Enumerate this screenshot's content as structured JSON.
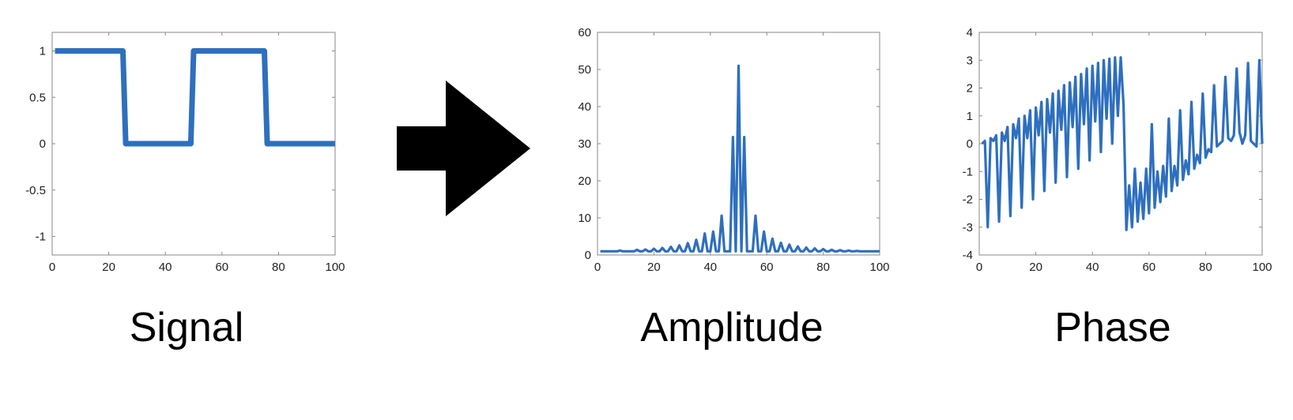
{
  "captions": {
    "signal": "Signal",
    "amplitude": "Amplitude",
    "phase": "Phase"
  },
  "colors": {
    "line": "#2E6FBF",
    "arrow": "#000000",
    "axis": "#888888",
    "text": "#222222"
  },
  "arrow": {
    "icon": "right-arrow-icon"
  },
  "chart_data": [
    {
      "type": "line",
      "xlim": [
        0,
        100
      ],
      "ylim": [
        -1.2,
        1.2
      ],
      "xticks": [
        0,
        20,
        40,
        60,
        80,
        100
      ],
      "yticks": [
        -1,
        -0.5,
        0,
        0.5,
        1
      ],
      "xticklabels": [
        "0",
        "20",
        "40",
        "60",
        "80",
        "100"
      ],
      "yticklabels": [
        "-1",
        "-0.5",
        "0",
        "0.5",
        "1"
      ],
      "grid": false,
      "series": [
        {
          "x": [
            1,
            25,
            26,
            49,
            50,
            75,
            76,
            100
          ],
          "y": [
            1,
            1,
            0,
            0,
            1,
            1,
            0,
            0
          ]
        }
      ]
    },
    {
      "type": "line",
      "xlim": [
        0,
        100
      ],
      "ylim": [
        0,
        60
      ],
      "xticks": [
        0,
        20,
        40,
        60,
        80,
        100
      ],
      "yticks": [
        0,
        10,
        20,
        30,
        40,
        50,
        60
      ],
      "xticklabels": [
        "0",
        "20",
        "40",
        "60",
        "80",
        "100"
      ],
      "yticklabels": [
        "0",
        "10",
        "20",
        "30",
        "40",
        "50",
        "60"
      ],
      "grid": false,
      "series": [
        {
          "x": [
            1,
            2,
            3,
            4,
            5,
            6,
            7,
            8,
            9,
            10,
            11,
            12,
            13,
            14,
            15,
            16,
            17,
            18,
            19,
            20,
            21,
            22,
            23,
            24,
            25,
            26,
            27,
            28,
            29,
            30,
            31,
            32,
            33,
            34,
            35,
            36,
            37,
            38,
            39,
            40,
            41,
            42,
            43,
            44,
            45,
            46,
            47,
            48,
            49,
            50,
            51,
            52,
            53,
            54,
            55,
            56,
            57,
            58,
            59,
            60,
            61,
            62,
            63,
            64,
            65,
            66,
            67,
            68,
            69,
            70,
            71,
            72,
            73,
            74,
            75,
            76,
            77,
            78,
            79,
            80,
            81,
            82,
            83,
            84,
            85,
            86,
            87,
            88,
            89,
            90,
            91,
            92,
            93,
            94,
            95,
            96,
            97,
            98,
            99,
            100
          ],
          "y": [
            1,
            1,
            1,
            1,
            1,
            1,
            1,
            1.2,
            1,
            1,
            1,
            1,
            1,
            1.4,
            1,
            1,
            1.5,
            1,
            1,
            1.7,
            1,
            1,
            1.9,
            1,
            1,
            2.2,
            1,
            1,
            2.6,
            1,
            1,
            3.2,
            1,
            1,
            4.1,
            1,
            1,
            5.8,
            1,
            1,
            6.3,
            1,
            1,
            10.6,
            1,
            1,
            1,
            31.8,
            1,
            51,
            1,
            31.8,
            1,
            1,
            1,
            10.6,
            1,
            1,
            6.3,
            1,
            1,
            4.4,
            1,
            1,
            3.3,
            1,
            1,
            2.8,
            1,
            1,
            2.3,
            1,
            1,
            2,
            1,
            1,
            1.8,
            1,
            1,
            1.6,
            1,
            1,
            1.4,
            1,
            1,
            1.3,
            1,
            1,
            1.2,
            1,
            1,
            1.1,
            1,
            1,
            1,
            1,
            1,
            1,
            1,
            1
          ]
        }
      ]
    },
    {
      "type": "line",
      "xlim": [
        0,
        100
      ],
      "ylim": [
        -4,
        4
      ],
      "xticks": [
        0,
        20,
        40,
        60,
        80,
        100
      ],
      "yticks": [
        -4,
        -3,
        -2,
        -1,
        0,
        1,
        2,
        3,
        4
      ],
      "xticklabels": [
        "0",
        "20",
        "40",
        "60",
        "80",
        "100"
      ],
      "yticklabels": [
        "-4",
        "-3",
        "-2",
        "-1",
        "0",
        "1",
        "2",
        "3",
        "4"
      ],
      "grid": false,
      "series": [
        {
          "x": [
            1,
            2,
            3,
            4,
            5,
            6,
            7,
            8,
            9,
            10,
            11,
            12,
            13,
            14,
            15,
            16,
            17,
            18,
            19,
            20,
            21,
            22,
            23,
            24,
            25,
            26,
            27,
            28,
            29,
            30,
            31,
            32,
            33,
            34,
            35,
            36,
            37,
            38,
            39,
            40,
            41,
            42,
            43,
            44,
            45,
            46,
            47,
            48,
            49,
            50,
            51,
            52,
            53,
            54,
            55,
            56,
            57,
            58,
            59,
            60,
            61,
            62,
            63,
            64,
            65,
            66,
            67,
            68,
            69,
            70,
            71,
            72,
            73,
            74,
            75,
            76,
            77,
            78,
            79,
            80,
            81,
            82,
            83,
            84,
            85,
            86,
            87,
            88,
            89,
            90,
            91,
            92,
            93,
            94,
            95,
            96,
            97,
            98,
            99,
            100
          ],
          "y": [
            0,
            0.1,
            -3,
            0.2,
            0.1,
            0.3,
            -2.8,
            0.4,
            0.1,
            0.6,
            -2.6,
            0.7,
            0.2,
            0.9,
            -2.3,
            1.0,
            0.2,
            1.2,
            -2.0,
            1.3,
            0.3,
            1.5,
            -1.7,
            1.6,
            0.4,
            1.8,
            -1.4,
            1.9,
            0.5,
            2.1,
            -1.2,
            2.2,
            0.6,
            2.4,
            -0.9,
            2.5,
            0.7,
            2.7,
            -0.6,
            2.8,
            0.8,
            2.9,
            -0.3,
            3.0,
            0.9,
            3.05,
            0,
            3.1,
            1.0,
            3.1,
            1.4,
            -3.1,
            -1.5,
            -3.0,
            -0.9,
            -2.8,
            -1.4,
            -2.7,
            -0.9,
            -2.5,
            0.7,
            -2.3,
            -1.0,
            -2.1,
            -0.8,
            -1.9,
            0.9,
            -1.7,
            -0.8,
            -1.5,
            1.2,
            -1.3,
            -0.6,
            -1.1,
            1.5,
            -0.9,
            -0.4,
            -0.7,
            1.8,
            -0.5,
            -0.2,
            -0.3,
            2.1,
            -0.1,
            0,
            0.1,
            2.4,
            0.2,
            0.1,
            0.3,
            2.7,
            0.4,
            0.0,
            0.3,
            2.9,
            0.1,
            0,
            -0.1,
            3.0,
            0
          ]
        }
      ]
    }
  ]
}
